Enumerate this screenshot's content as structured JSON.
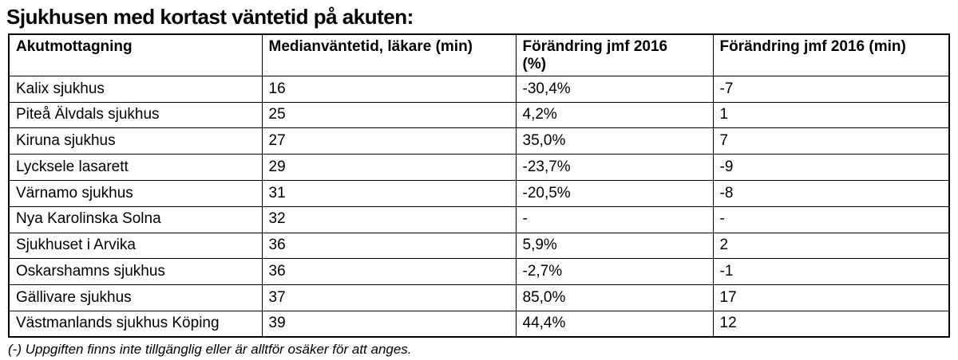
{
  "title": "Sjukhusen med kortast väntetid på akuten:",
  "table": {
    "columns": [
      "Akutmottagning",
      "Medianväntetid, läkare (min)",
      "Förändring jmf 2016\n(%)",
      "Förändring jmf 2016 (min)"
    ],
    "rows": [
      [
        "Kalix sjukhus",
        "16",
        "-30,4%",
        "-7"
      ],
      [
        "Piteå Älvdals sjukhus",
        "25",
        "4,2%",
        "1"
      ],
      [
        "Kiruna sjukhus",
        "27",
        "35,0%",
        "7"
      ],
      [
        "Lycksele lasarett",
        "29",
        "-23,7%",
        "-9"
      ],
      [
        "Värnamo sjukhus",
        "31",
        "-20,5%",
        "-8"
      ],
      [
        "Nya Karolinska Solna",
        "32",
        "-",
        "-"
      ],
      [
        "Sjukhuset i Arvika",
        "36",
        "5,9%",
        "2"
      ],
      [
        "Oskarshamns sjukhus",
        "36",
        "-2,7%",
        "-1"
      ],
      [
        "Gällivare sjukhus",
        "37",
        "85,0%",
        "17"
      ],
      [
        "Västmanlands sjukhus Köping",
        "39",
        "44,4%",
        "12"
      ]
    ]
  },
  "footnote": "(-) Uppgiften finns inte tillgänglig eller är alltför osäker för att anges.",
  "colors": {
    "text": "#000000",
    "border": "#000000",
    "background": "#ffffff"
  }
}
